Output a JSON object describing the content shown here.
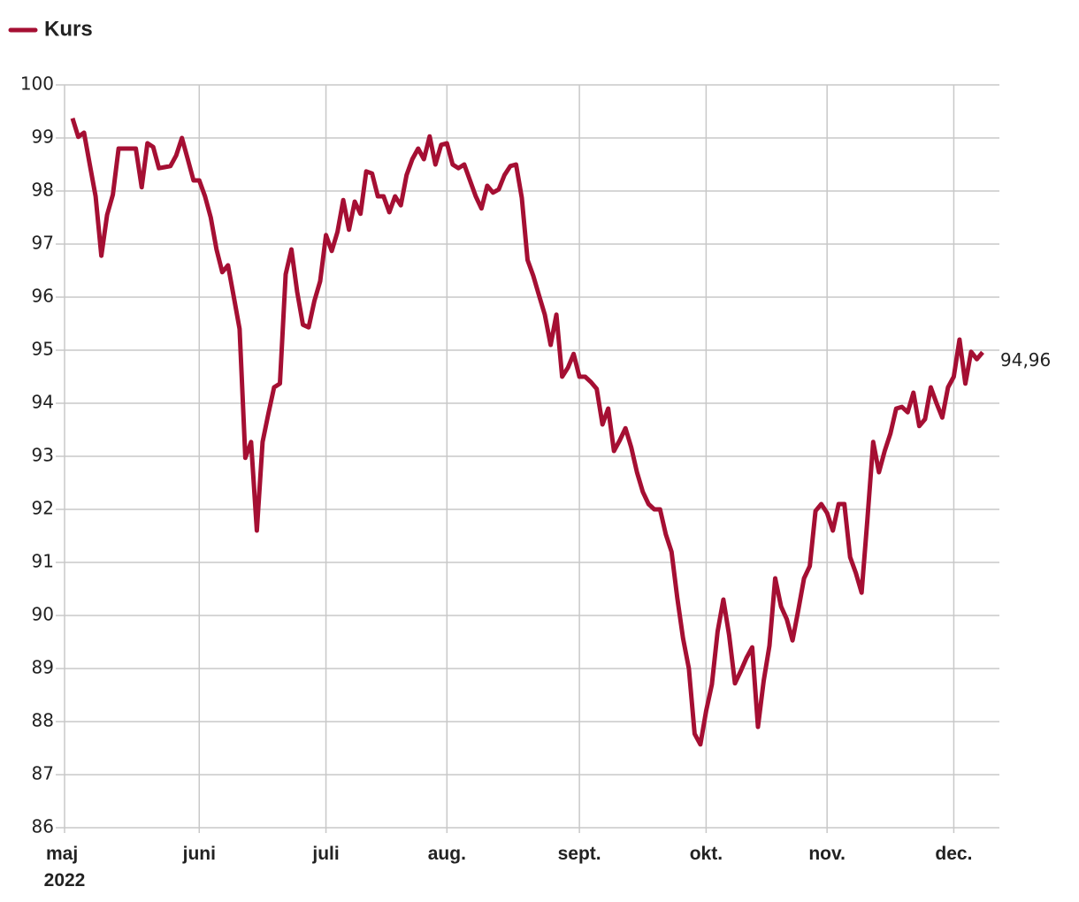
{
  "chart_data": {
    "type": "line",
    "categories": [
      "maj 2022",
      null,
      null,
      null,
      null,
      null,
      null,
      null,
      null,
      null,
      null,
      null,
      null,
      null,
      null,
      null,
      null,
      null,
      null,
      null,
      null,
      null,
      "juni",
      null,
      null,
      null,
      null,
      null,
      null,
      null,
      null,
      null,
      null,
      null,
      null,
      null,
      null,
      null,
      null,
      null,
      null,
      null,
      null,
      null,
      "juli",
      null,
      null,
      null,
      null,
      null,
      null,
      null,
      null,
      null,
      null,
      null,
      null,
      null,
      null,
      null,
      null,
      null,
      null,
      null,
      null,
      "aug.",
      null,
      null,
      null,
      null,
      null,
      null,
      null,
      null,
      null,
      null,
      null,
      null,
      null,
      null,
      null,
      null,
      null,
      null,
      null,
      null,
      null,
      null,
      "sept.",
      null,
      null,
      null,
      null,
      null,
      null,
      null,
      null,
      null,
      null,
      null,
      null,
      null,
      null,
      null,
      null,
      null,
      null,
      null,
      null,
      null,
      "okt.",
      null,
      null,
      null,
      null,
      null,
      null,
      null,
      null,
      null,
      null,
      null,
      null,
      null,
      null,
      null,
      null,
      null,
      null,
      null,
      null,
      "nov.",
      null,
      null,
      null,
      null,
      null,
      null,
      null,
      null,
      null,
      null,
      null,
      null,
      null,
      null,
      null,
      null,
      null,
      null,
      null,
      null,
      null,
      "dec.",
      null,
      null,
      null,
      null,
      null
    ],
    "series": [
      {
        "name": "Kurs",
        "color": "#a50f33",
        "values": [
          99.37,
          99.02,
          99.1,
          98.5,
          97.9,
          96.78,
          97.55,
          97.93,
          98.8,
          98.8,
          98.8,
          98.8,
          98.07,
          98.9,
          98.83,
          98.43,
          98.45,
          98.47,
          98.67,
          99.0,
          98.6,
          98.2,
          98.2,
          97.9,
          97.5,
          96.9,
          96.47,
          96.6,
          96.0,
          95.4,
          92.97,
          93.27,
          91.6,
          93.27,
          93.8,
          94.3,
          94.37,
          96.43,
          96.9,
          96.1,
          95.48,
          95.43,
          95.93,
          96.3,
          97.17,
          96.87,
          97.23,
          97.83,
          97.27,
          97.8,
          97.57,
          98.37,
          98.33,
          97.9,
          97.9,
          97.6,
          97.9,
          97.73,
          98.3,
          98.6,
          98.8,
          98.6,
          99.03,
          98.5,
          98.87,
          98.9,
          98.5,
          98.43,
          98.5,
          98.2,
          97.9,
          97.67,
          98.1,
          97.97,
          98.03,
          98.3,
          98.47,
          98.5,
          97.87,
          96.7,
          96.4,
          96.03,
          95.67,
          95.1,
          95.67,
          94.5,
          94.67,
          94.93,
          94.5,
          94.5,
          94.4,
          94.27,
          93.6,
          93.9,
          93.1,
          93.3,
          93.53,
          93.17,
          92.7,
          92.33,
          92.1,
          92.0,
          92.0,
          91.53,
          91.2,
          90.33,
          89.57,
          89.0,
          87.77,
          87.57,
          88.2,
          88.7,
          89.7,
          90.3,
          89.63,
          88.72,
          88.95,
          89.2,
          89.4,
          87.9,
          88.77,
          89.43,
          90.7,
          90.17,
          89.93,
          89.53,
          90.1,
          90.7,
          90.93,
          91.97,
          92.1,
          91.93,
          91.6,
          92.1,
          92.1,
          91.1,
          90.8,
          90.43,
          91.8,
          93.27,
          92.7,
          93.1,
          93.43,
          93.9,
          93.93,
          93.83,
          94.2,
          93.57,
          93.7,
          94.3,
          94.0,
          93.73,
          94.3,
          94.5,
          95.2,
          94.37,
          94.97,
          94.83,
          94.96
        ],
        "value_labels": [
          null,
          null,
          null,
          null,
          null,
          null,
          null,
          null,
          null,
          null,
          null,
          null,
          null,
          null,
          null,
          null,
          null,
          null,
          null,
          null,
          null,
          null,
          null,
          null,
          null,
          null,
          null,
          null,
          null,
          null,
          null,
          null,
          null,
          null,
          null,
          null,
          null,
          null,
          null,
          null,
          null,
          null,
          null,
          null,
          null,
          null,
          null,
          null,
          null,
          null,
          null,
          null,
          null,
          null,
          null,
          null,
          null,
          null,
          null,
          null,
          null,
          null,
          null,
          null,
          null,
          null,
          null,
          null,
          null,
          null,
          null,
          null,
          null,
          null,
          null,
          null,
          null,
          null,
          null,
          null,
          null,
          null,
          null,
          null,
          null,
          null,
          null,
          null,
          null,
          null,
          null,
          null,
          null,
          null,
          null,
          null,
          null,
          null,
          null,
          null,
          null,
          null,
          null,
          null,
          null,
          null,
          null,
          null,
          null,
          null,
          null,
          null,
          null,
          null,
          null,
          null,
          null,
          null,
          null,
          null,
          null,
          null,
          null,
          null,
          null,
          null,
          null,
          null,
          null,
          null,
          null,
          null,
          null,
          null,
          null,
          null,
          null,
          null,
          null,
          null,
          null,
          null,
          null,
          null,
          null,
          null,
          null,
          null,
          null,
          null,
          null,
          null,
          null,
          null,
          null,
          null,
          null,
          null,
          "94,96"
        ]
      }
    ],
    "ylim": [
      86,
      100
    ],
    "yticks": [
      86,
      87,
      88,
      89,
      90,
      91,
      92,
      93,
      94,
      95,
      96,
      97,
      98,
      99,
      100
    ],
    "grid": true,
    "legend": "top-left"
  }
}
